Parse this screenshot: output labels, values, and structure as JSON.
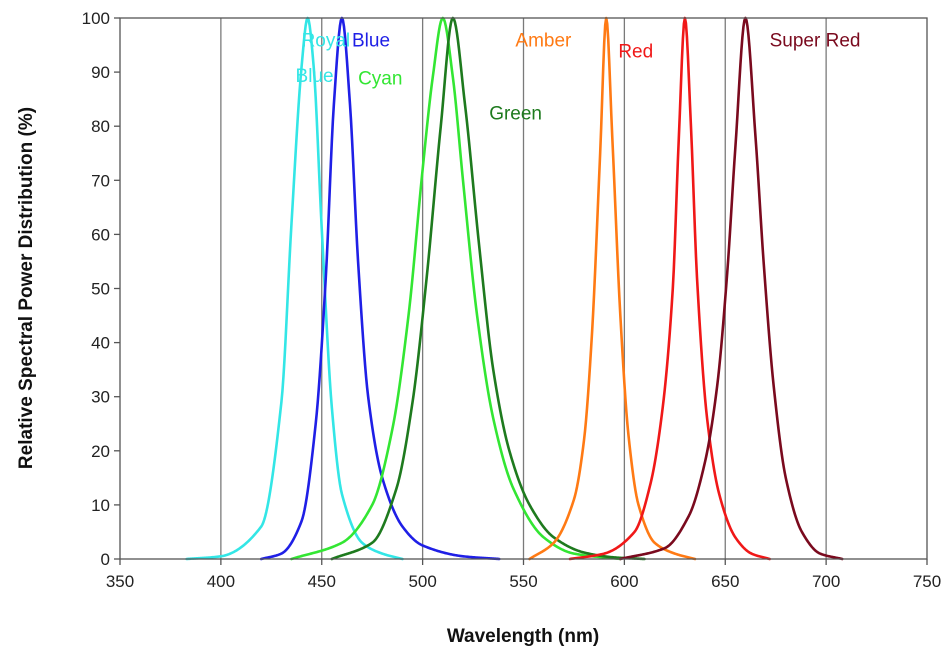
{
  "chart_data": {
    "type": "line",
    "title": "",
    "xlabel": "Wavelength (nm)",
    "ylabel": "Relative Spectral Power Distribution (%)",
    "xlim": [
      350,
      750
    ],
    "ylim": [
      0,
      100
    ],
    "xticks": [
      350,
      400,
      450,
      500,
      550,
      600,
      650,
      700,
      750
    ],
    "yticks": [
      0,
      10,
      20,
      30,
      40,
      50,
      60,
      70,
      80,
      90,
      100
    ],
    "grid": "vertical",
    "legend": "none",
    "series": [
      {
        "name": "Royal Blue",
        "color": "#33E6E6",
        "peak": 443,
        "fwhm": 19,
        "range": [
          383,
          490
        ],
        "x": [
          383,
          400,
          420,
          430,
          435,
          440,
          443,
          446,
          450,
          455,
          460,
          470,
          480,
          490
        ],
        "y": [
          0,
          0.5,
          6,
          29,
          62,
          91,
          100,
          91,
          61,
          28,
          12,
          3,
          1,
          0
        ]
      },
      {
        "name": "Blue",
        "color": "#1F1FE6",
        "peak": 460,
        "fwhm": 23,
        "range": [
          420,
          538
        ],
        "x": [
          420,
          430,
          440,
          447,
          452,
          456,
          460,
          464,
          468,
          473,
          480,
          490,
          500,
          520,
          538
        ],
        "y": [
          0,
          1,
          7,
          25,
          52,
          84,
          100,
          84,
          55,
          30,
          15,
          6,
          2.5,
          0.5,
          0
        ]
      },
      {
        "name": "Cyan",
        "color": "#33E633",
        "peak": 510,
        "fwhm": 32,
        "range": [
          435,
          598
        ],
        "x": [
          435,
          460,
          475,
          485,
          493,
          500,
          505,
          510,
          515,
          520,
          527,
          535,
          545,
          560,
          575,
          598
        ],
        "y": [
          0,
          3,
          10,
          24,
          45,
          72,
          89,
          100,
          89,
          70,
          45,
          26,
          13,
          4,
          1,
          0
        ]
      },
      {
        "name": "Green",
        "color": "#1E7A1E",
        "peak": 515,
        "fwhm": 34,
        "range": [
          455,
          610
        ],
        "x": [
          455,
          475,
          487,
          495,
          502,
          509,
          515,
          521,
          528,
          535,
          543,
          553,
          565,
          580,
          595,
          610
        ],
        "y": [
          0,
          3,
          13,
          29,
          52,
          80,
          100,
          84,
          58,
          35,
          20,
          10,
          4,
          1.2,
          0.3,
          0
        ]
      },
      {
        "name": "Amber",
        "color": "#FF7A14",
        "peak": 591,
        "fwhm": 15,
        "range": [
          553,
          635
        ],
        "x": [
          553,
          565,
          575,
          580,
          584,
          588,
          591,
          594,
          598,
          602,
          607,
          615,
          625,
          635
        ],
        "y": [
          0,
          3,
          11,
          22,
          42,
          75,
          100,
          78,
          45,
          23,
          10,
          3,
          1,
          0
        ]
      },
      {
        "name": "Red",
        "color": "#F01818",
        "peak": 630,
        "fwhm": 16,
        "range": [
          573,
          672
        ],
        "x": [
          573,
          590,
          605,
          613,
          619,
          624,
          627,
          630,
          633,
          636,
          641,
          647,
          655,
          663,
          672
        ],
        "y": [
          0,
          1,
          5,
          14,
          28,
          50,
          78,
          100,
          80,
          52,
          26,
          12,
          4,
          1,
          0
        ]
      },
      {
        "name": "Super Red",
        "color": "#7A0A1E",
        "peak": 660,
        "fwhm": 21,
        "range": [
          598,
          708
        ],
        "x": [
          598,
          620,
          632,
          640,
          646,
          651,
          655,
          660,
          665,
          669,
          674,
          680,
          688,
          697,
          708
        ],
        "y": [
          0,
          2,
          8,
          18,
          32,
          53,
          76,
          100,
          78,
          55,
          32,
          15,
          5,
          1,
          0
        ]
      }
    ],
    "annotations": [
      {
        "text": "Royal",
        "series": "Royal Blue",
        "x": 440,
        "y": 96
      },
      {
        "text": "Blue",
        "series": "Royal Blue",
        "x": 437,
        "y": 89.5
      },
      {
        "text": "Blue",
        "series": "Blue",
        "x": 465,
        "y": 96
      },
      {
        "text": "Cyan",
        "series": "Cyan",
        "x": 468,
        "y": 89
      },
      {
        "text": "Green",
        "series": "Green",
        "x": 533,
        "y": 82.5
      },
      {
        "text": "Amber",
        "series": "Amber",
        "x": 546,
        "y": 96
      },
      {
        "text": "Red",
        "series": "Red",
        "x": 597,
        "y": 94
      },
      {
        "text": "Super Red",
        "series": "Super Red",
        "x": 672,
        "y": 96
      }
    ]
  }
}
